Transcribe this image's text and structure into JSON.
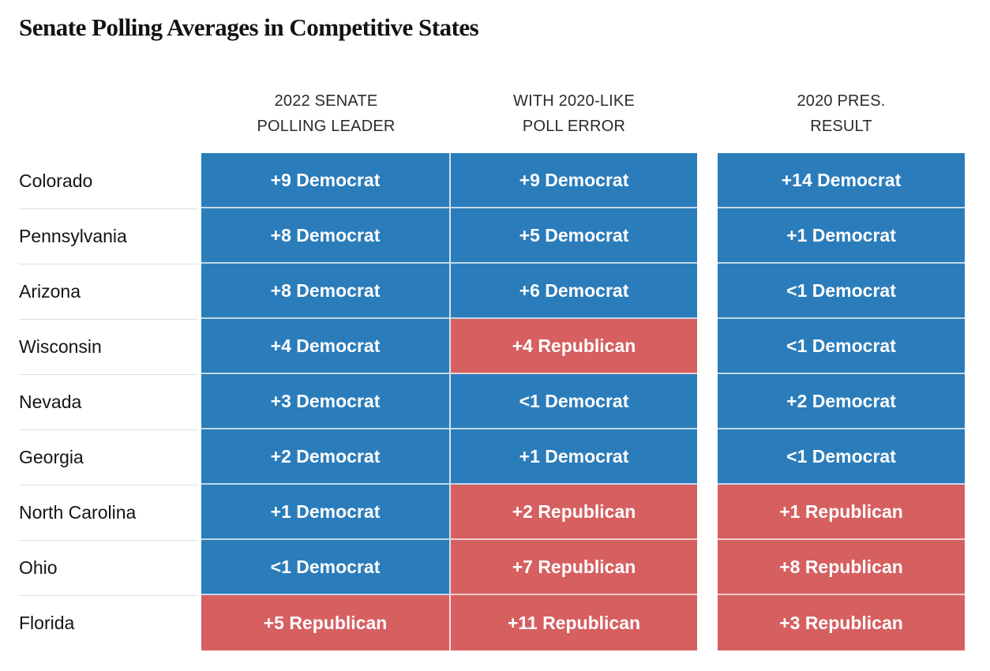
{
  "title": "Senate Polling Averages in Competitive States",
  "column_headers": [
    {
      "line1": "2022 SENATE",
      "line2": "POLLING LEADER"
    },
    {
      "line1": "WITH 2020-LIKE",
      "line2": "POLL ERROR"
    },
    {
      "line1": "2020 PRES.",
      "line2": "RESULT"
    }
  ],
  "colors": {
    "democrat": "#2b7cba",
    "republican": "#d65f60",
    "hairline": "#e0e0e0",
    "cell_text": "#ffffff",
    "title_text": "#121212",
    "header_text": "#2b2b2b"
  },
  "chart_data": {
    "type": "table",
    "title": "Senate Polling Averages in Competitive States",
    "columns": [
      "2022 Senate polling leader",
      "With 2020-like poll error",
      "2020 Pres. result"
    ],
    "legend": {
      "democrat_color_meaning": "Democrat lead",
      "republican_color_meaning": "Republican lead"
    },
    "rows": [
      {
        "state": "Colorado",
        "values": [
          "+9 Democrat",
          "+9 Democrat",
          "+14 Democrat"
        ],
        "parties": [
          "democrat",
          "democrat",
          "democrat"
        ]
      },
      {
        "state": "Pennsylvania",
        "values": [
          "+8 Democrat",
          "+5 Democrat",
          "+1 Democrat"
        ],
        "parties": [
          "democrat",
          "democrat",
          "democrat"
        ]
      },
      {
        "state": "Arizona",
        "values": [
          "+8 Democrat",
          "+6 Democrat",
          "<1 Democrat"
        ],
        "parties": [
          "democrat",
          "democrat",
          "democrat"
        ]
      },
      {
        "state": "Wisconsin",
        "values": [
          "+4 Democrat",
          "+4 Republican",
          "<1 Democrat"
        ],
        "parties": [
          "democrat",
          "republican",
          "democrat"
        ]
      },
      {
        "state": "Nevada",
        "values": [
          "+3 Democrat",
          "<1 Democrat",
          "+2 Democrat"
        ],
        "parties": [
          "democrat",
          "democrat",
          "democrat"
        ]
      },
      {
        "state": "Georgia",
        "values": [
          "+2 Democrat",
          "+1 Democrat",
          "<1 Democrat"
        ],
        "parties": [
          "democrat",
          "democrat",
          "democrat"
        ]
      },
      {
        "state": "North Carolina",
        "values": [
          "+1 Democrat",
          "+2 Republican",
          "+1 Republican"
        ],
        "parties": [
          "democrat",
          "republican",
          "republican"
        ]
      },
      {
        "state": "Ohio",
        "values": [
          "<1 Democrat",
          "+7 Republican",
          "+8 Republican"
        ],
        "parties": [
          "democrat",
          "republican",
          "republican"
        ]
      },
      {
        "state": "Florida",
        "values": [
          "+5 Republican",
          "+11 Republican",
          "+3 Republican"
        ],
        "parties": [
          "republican",
          "republican",
          "republican"
        ]
      }
    ]
  }
}
